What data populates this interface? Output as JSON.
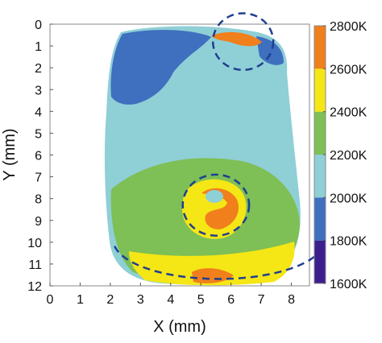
{
  "chart_data": {
    "type": "heatmap",
    "title": "",
    "xlabel": "X (mm)",
    "ylabel": "Y (mm)",
    "xlim": [
      0,
      8.6
    ],
    "ylim": [
      12,
      0
    ],
    "x_ticks": [
      "0",
      "1",
      "2",
      "3",
      "4",
      "5",
      "6",
      "7",
      "8"
    ],
    "y_ticks": [
      "0",
      "1",
      "2",
      "3",
      "4",
      "5",
      "6",
      "7",
      "8",
      "9",
      "10",
      "11",
      "12"
    ],
    "colorbar": {
      "levels_K": [
        1600,
        1800,
        2000,
        2200,
        2400,
        2600,
        2800
      ],
      "labels": [
        "1600K",
        "1800K",
        "2000K",
        "2200K",
        "2400K",
        "2600K",
        "2800K"
      ],
      "bands": [
        {
          "from": 1600,
          "to": 1800,
          "color": "#3c1f8f"
        },
        {
          "from": 1800,
          "to": 2000,
          "color": "#3f6fbf"
        },
        {
          "from": 2000,
          "to": 2200,
          "color": "#8fcfd6"
        },
        {
          "from": 2200,
          "to": 2400,
          "color": "#7ebf56"
        },
        {
          "from": 2400,
          "to": 2600,
          "color": "#f5e616"
        },
        {
          "from": 2600,
          "to": 2800,
          "color": "#f07f1c"
        }
      ]
    },
    "regions": [
      {
        "level": 2000,
        "desc": "main body",
        "center": [
          4.0,
          4.2
        ]
      },
      {
        "level": 1800,
        "desc": "upper left edge",
        "center": [
          2.2,
          1.8
        ]
      },
      {
        "level": 2200,
        "desc": "lower ring",
        "center": [
          4.6,
          8.6
        ]
      },
      {
        "level": 2400,
        "desc": "bottom edge band",
        "center": [
          5.0,
          11.2
        ]
      },
      {
        "level": 2600,
        "desc": "top hot spot",
        "center": [
          6.2,
          0.6
        ]
      },
      {
        "level": 2600,
        "desc": "center hot spot",
        "center": [
          5.7,
          8.4
        ]
      },
      {
        "level": 2600,
        "desc": "bottom hot spot",
        "center": [
          5.8,
          11.6
        ]
      }
    ],
    "annotations": [
      {
        "shape": "dashed-circle",
        "center": [
          6.4,
          0.8
        ],
        "rx": 1.0,
        "ry": 1.3
      },
      {
        "shape": "dashed-circle",
        "center": [
          5.5,
          8.3
        ],
        "rx": 1.1,
        "ry": 1.4
      },
      {
        "shape": "dashed-arc",
        "center": [
          5.6,
          9.9
        ],
        "rx": 3.5,
        "ry": 2.1
      }
    ],
    "grid": false,
    "legend": "colorbar-right"
  }
}
